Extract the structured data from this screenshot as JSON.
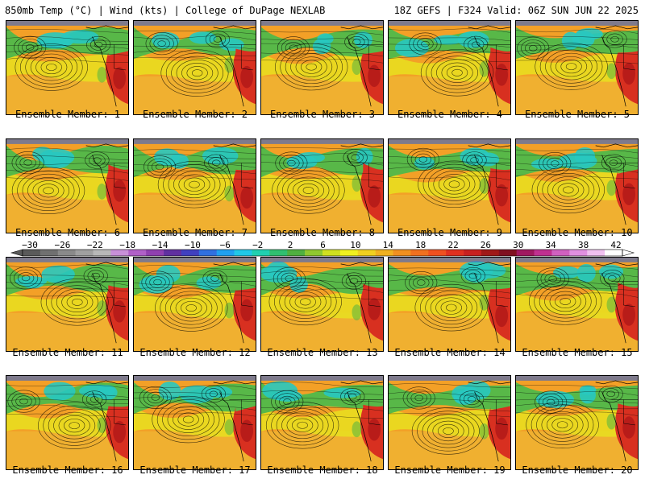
{
  "header": {
    "left_title": "850mb Temp (°C) | Wind (kts) | College of DuPage NEXLAB",
    "right_title": "18Z GEFS | F324 Valid: 06Z SUN JUN 22 2025"
  },
  "members": [
    "Ensemble Member: 1",
    "Ensemble Member: 2",
    "Ensemble Member: 3",
    "Ensemble Member: 4",
    "Ensemble Member: 5",
    "Ensemble Member: 6",
    "Ensemble Member: 7",
    "Ensemble Member: 8",
    "Ensemble Member: 9",
    "Ensemble Member: 10",
    "Ensemble Member: 11",
    "Ensemble Member: 12",
    "Ensemble Member: 13",
    "Ensemble Member: 14",
    "Ensemble Member: 15",
    "Ensemble Member: 16",
    "Ensemble Member: 17",
    "Ensemble Member: 18",
    "Ensemble Member: 19",
    "Ensemble Member: 20"
  ],
  "colorbar": {
    "labels": [
      "−30",
      "−26",
      "−22",
      "−18",
      "−14",
      "−10",
      "−6",
      "−2",
      "2",
      "6",
      "10",
      "14",
      "18",
      "22",
      "26",
      "30",
      "34",
      "38",
      "42"
    ],
    "colors": [
      "#5a5a5a",
      "#707070",
      "#8a8a8a",
      "#a0a0a0",
      "#b8b8b8",
      "#c890d8",
      "#b060c8",
      "#9040b0",
      "#6030a0",
      "#4040c0",
      "#3070e0",
      "#20a0f0",
      "#20c8e8",
      "#20d0b0",
      "#30c070",
      "#50b040",
      "#90c830",
      "#d0e020",
      "#f0f020",
      "#f0d020",
      "#f0b020",
      "#f09020",
      "#f07020",
      "#f05020",
      "#e03020",
      "#c82020",
      "#a01818",
      "#801020",
      "#a01860",
      "#c03090",
      "#d060c0",
      "#e090e0",
      "#f0c0f0",
      "#ffffff"
    ]
  }
}
